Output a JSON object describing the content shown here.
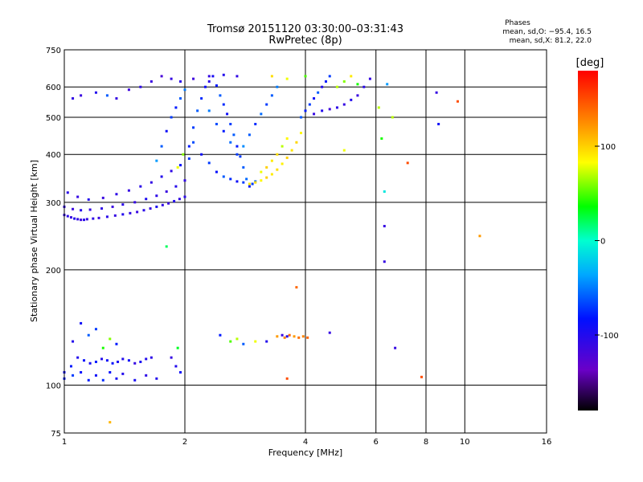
{
  "chart_data": {
    "type": "scatter",
    "title": "Tromsø 20151120 03:30:00–03:31:43",
    "subtitle": "RwPretec (8p)",
    "xlabel": "Frequency [MHz]",
    "ylabel": "Stationary phase Virtual Height [km]",
    "x_scale": "log",
    "y_scale": "log",
    "xlim": [
      1,
      16
    ],
    "ylim": [
      75,
      750
    ],
    "x_ticks": [
      1,
      2,
      4,
      6,
      8,
      10,
      16
    ],
    "x_tick_labels": [
      "1",
      "2",
      "4",
      "6",
      "8",
      "10",
      "16"
    ],
    "y_ticks": [
      75,
      100,
      200,
      300,
      400,
      500,
      600,
      750
    ],
    "y_tick_labels": [
      "75",
      "100",
      "200",
      "300",
      "400",
      "500",
      "600",
      "750"
    ],
    "grid": true,
    "stats": {
      "heading": "Phases",
      "line_o": "mean, sd,O: −95.4, 16.5",
      "line_x": "mean, sd,X:  81.2, 22.0"
    },
    "colorbar": {
      "label": "[deg]",
      "range": [
        -180,
        180
      ],
      "ticks": [
        100,
        0,
        -100
      ],
      "tick_labels": [
        "100",
        "0",
        "-100"
      ]
    },
    "series": [
      {
        "points": [
          [
            1.0,
            278,
            -110
          ],
          [
            1.02,
            276,
            -105
          ],
          [
            1.04,
            274,
            -112
          ],
          [
            1.06,
            272,
            -100
          ],
          [
            1.08,
            271,
            -108
          ],
          [
            1.1,
            270,
            -115
          ],
          [
            1.12,
            270,
            -102
          ],
          [
            1.14,
            271,
            -110
          ],
          [
            1.18,
            272,
            -106
          ],
          [
            1.22,
            273,
            -112
          ],
          [
            1.28,
            275,
            -104
          ],
          [
            1.34,
            277,
            -110
          ],
          [
            1.4,
            279,
            -100
          ],
          [
            1.46,
            281,
            -108
          ],
          [
            1.52,
            283,
            -112
          ],
          [
            1.58,
            286,
            -104
          ],
          [
            1.64,
            289,
            -110
          ],
          [
            1.7,
            292,
            -96
          ],
          [
            1.76,
            295,
            -106
          ],
          [
            1.82,
            298,
            -112
          ],
          [
            1.88,
            302,
            -100
          ],
          [
            1.94,
            306,
            -108
          ],
          [
            2.0,
            310,
            -104
          ],
          [
            1.0,
            292,
            -108
          ],
          [
            1.05,
            288,
            -112
          ],
          [
            1.1,
            286,
            -102
          ],
          [
            1.16,
            287,
            -110
          ],
          [
            1.24,
            289,
            -106
          ],
          [
            1.32,
            292,
            -112
          ],
          [
            1.4,
            296,
            -104
          ],
          [
            1.5,
            300,
            -110
          ],
          [
            1.6,
            306,
            -98
          ],
          [
            1.7,
            312,
            -106
          ],
          [
            1.8,
            320,
            -112
          ],
          [
            1.9,
            330,
            -102
          ],
          [
            2.0,
            342,
            -108
          ],
          [
            1.02,
            318,
            -104
          ],
          [
            1.08,
            310,
            -110
          ],
          [
            1.15,
            305,
            -100
          ],
          [
            1.25,
            308,
            -112
          ],
          [
            1.35,
            315,
            -106
          ],
          [
            1.45,
            322,
            -110
          ],
          [
            1.55,
            330,
            -104
          ],
          [
            1.65,
            338,
            -108
          ],
          [
            1.75,
            350,
            -100
          ],
          [
            1.85,
            362,
            -106
          ],
          [
            1.95,
            375,
            -84
          ],
          [
            2.05,
            390,
            -70
          ],
          [
            1.7,
            385,
            -40
          ],
          [
            1.75,
            420,
            -60
          ],
          [
            1.8,
            460,
            -90
          ],
          [
            1.85,
            500,
            -70
          ],
          [
            1.9,
            530,
            -80
          ],
          [
            1.95,
            560,
            -60
          ],
          [
            2.0,
            590,
            -50
          ],
          [
            2.05,
            420,
            -80
          ],
          [
            2.1,
            470,
            -70
          ],
          [
            2.15,
            520,
            -60
          ],
          [
            2.2,
            560,
            -75
          ],
          [
            2.25,
            600,
            -90
          ],
          [
            2.3,
            620,
            -105
          ],
          [
            2.35,
            640,
            -95
          ],
          [
            2.4,
            605,
            -80
          ],
          [
            2.45,
            570,
            -60
          ],
          [
            2.5,
            540,
            -75
          ],
          [
            2.55,
            510,
            -90
          ],
          [
            2.6,
            480,
            -70
          ],
          [
            2.65,
            450,
            -60
          ],
          [
            2.7,
            420,
            -80
          ],
          [
            2.75,
            395,
            -70
          ],
          [
            2.8,
            370,
            -60
          ],
          [
            2.85,
            345,
            -55
          ],
          [
            2.9,
            330,
            -80
          ],
          [
            2.95,
            335,
            -70
          ],
          [
            3.0,
            340,
            -60
          ],
          [
            2.1,
            430,
            -65
          ],
          [
            2.2,
            400,
            -90
          ],
          [
            2.3,
            380,
            -70
          ],
          [
            2.4,
            360,
            -85
          ],
          [
            2.5,
            350,
            -60
          ],
          [
            2.6,
            345,
            -75
          ],
          [
            2.7,
            340,
            -90
          ],
          [
            2.8,
            338,
            -70
          ],
          [
            2.3,
            520,
            -50
          ],
          [
            2.4,
            480,
            -65
          ],
          [
            2.5,
            460,
            -80
          ],
          [
            2.6,
            430,
            -55
          ],
          [
            2.7,
            400,
            -70
          ],
          [
            2.8,
            420,
            -45
          ],
          [
            2.9,
            450,
            -60
          ],
          [
            3.0,
            480,
            -75
          ],
          [
            3.1,
            510,
            -55
          ],
          [
            3.2,
            540,
            -70
          ],
          [
            3.3,
            570,
            -60
          ],
          [
            3.4,
            600,
            -50
          ],
          [
            2.9,
            335,
            90
          ],
          [
            3.0,
            338,
            95
          ],
          [
            3.1,
            342,
            85
          ],
          [
            3.2,
            348,
            100
          ],
          [
            3.3,
            355,
            90
          ],
          [
            3.4,
            365,
            95
          ],
          [
            3.5,
            378,
            88
          ],
          [
            3.6,
            392,
            100
          ],
          [
            3.7,
            410,
            92
          ],
          [
            3.8,
            430,
            98
          ],
          [
            3.9,
            455,
            85
          ],
          [
            3.1,
            360,
            80
          ],
          [
            3.2,
            370,
            100
          ],
          [
            3.3,
            385,
            90
          ],
          [
            3.4,
            400,
            95
          ],
          [
            3.5,
            420,
            70
          ],
          [
            3.6,
            440,
            85
          ],
          [
            3.9,
            500,
            -60
          ],
          [
            4.0,
            520,
            -80
          ],
          [
            4.1,
            540,
            -70
          ],
          [
            4.2,
            560,
            -90
          ],
          [
            4.3,
            580,
            -60
          ],
          [
            4.4,
            600,
            -100
          ],
          [
            4.5,
            620,
            -80
          ],
          [
            4.6,
            640,
            -70
          ],
          [
            4.2,
            510,
            -110
          ],
          [
            4.4,
            520,
            -100
          ],
          [
            4.6,
            525,
            -115
          ],
          [
            4.8,
            530,
            -105
          ],
          [
            5.0,
            540,
            -110
          ],
          [
            5.2,
            555,
            -100
          ],
          [
            5.4,
            570,
            -112
          ],
          [
            5.6,
            600,
            -104
          ],
          [
            5.8,
            630,
            -110
          ],
          [
            4.8,
            600,
            70
          ],
          [
            5.0,
            620,
            60
          ],
          [
            5.2,
            640,
            90
          ],
          [
            5.4,
            610,
            40
          ],
          [
            3.3,
            640,
            95
          ],
          [
            3.6,
            630,
            80
          ],
          [
            4.0,
            640,
            50
          ],
          [
            1.05,
            560,
            -108
          ],
          [
            1.1,
            570,
            -112
          ],
          [
            1.2,
            580,
            -100
          ],
          [
            1.28,
            570,
            -60
          ],
          [
            1.35,
            560,
            -110
          ],
          [
            1.45,
            590,
            -115
          ],
          [
            1.55,
            600,
            -106
          ],
          [
            1.65,
            620,
            -112
          ],
          [
            1.75,
            640,
            -120
          ],
          [
            1.85,
            630,
            -110
          ],
          [
            1.95,
            620,
            -104
          ],
          [
            2.1,
            630,
            -115
          ],
          [
            2.3,
            640,
            -110
          ],
          [
            2.5,
            645,
            -100
          ],
          [
            2.7,
            640,
            -108
          ],
          [
            1.92,
            370,
            80
          ],
          [
            1.98,
            400,
            60
          ],
          [
            1.8,
            230,
            20
          ],
          [
            1.0,
            108,
            -90
          ],
          [
            1.04,
            112,
            -80
          ],
          [
            1.08,
            118,
            -100
          ],
          [
            1.12,
            116,
            -85
          ],
          [
            1.16,
            114,
            -95
          ],
          [
            1.2,
            115,
            -80
          ],
          [
            1.24,
            117,
            -100
          ],
          [
            1.28,
            116,
            -90
          ],
          [
            1.32,
            114,
            -85
          ],
          [
            1.36,
            115,
            -95
          ],
          [
            1.4,
            117,
            -100
          ],
          [
            1.45,
            116,
            -90
          ],
          [
            1.5,
            114,
            -110
          ],
          [
            1.55,
            115,
            -95
          ],
          [
            1.6,
            117,
            -100
          ],
          [
            1.65,
            118,
            -105
          ],
          [
            1.0,
            104,
            -80
          ],
          [
            1.05,
            106,
            -70
          ],
          [
            1.1,
            108,
            -85
          ],
          [
            1.15,
            103,
            -80
          ],
          [
            1.2,
            106,
            -90
          ],
          [
            1.25,
            103,
            -75
          ],
          [
            1.3,
            108,
            -85
          ],
          [
            1.35,
            104,
            -95
          ],
          [
            1.4,
            107,
            -100
          ],
          [
            1.5,
            103,
            -95
          ],
          [
            1.6,
            106,
            -105
          ],
          [
            1.7,
            104,
            -100
          ],
          [
            1.05,
            130,
            -100
          ],
          [
            1.1,
            145,
            -90
          ],
          [
            1.15,
            135,
            -60
          ],
          [
            1.2,
            140,
            -70
          ],
          [
            1.25,
            125,
            40
          ],
          [
            1.3,
            132,
            60
          ],
          [
            1.35,
            128,
            -80
          ],
          [
            1.85,
            118,
            -110
          ],
          [
            1.9,
            112,
            -100
          ],
          [
            1.95,
            108,
            -90
          ],
          [
            1.92,
            125,
            30
          ],
          [
            2.45,
            135,
            -80
          ],
          [
            2.6,
            130,
            50
          ],
          [
            2.7,
            132,
            70
          ],
          [
            2.8,
            128,
            -60
          ],
          [
            3.0,
            130,
            80
          ],
          [
            3.2,
            130,
            -100
          ],
          [
            3.4,
            134,
            120
          ],
          [
            3.55,
            133,
            130
          ],
          [
            3.65,
            135,
            140
          ],
          [
            3.75,
            134,
            120
          ],
          [
            3.85,
            133,
            135
          ],
          [
            3.95,
            134,
            128
          ],
          [
            4.05,
            133,
            140
          ],
          [
            3.5,
            135,
            -110
          ],
          [
            3.6,
            134,
            -100
          ],
          [
            3.6,
            104,
            150
          ],
          [
            3.8,
            180,
            140
          ],
          [
            4.6,
            137,
            -110
          ],
          [
            1.3,
            80,
            110
          ],
          [
            6.1,
            530,
            70
          ],
          [
            6.2,
            440,
            40
          ],
          [
            6.4,
            610,
            -40
          ],
          [
            6.6,
            500,
            70
          ],
          [
            6.3,
            320,
            -10
          ],
          [
            6.3,
            260,
            -110
          ],
          [
            6.3,
            210,
            -110
          ],
          [
            6.7,
            125,
            -110
          ],
          [
            7.2,
            380,
            150
          ],
          [
            7.8,
            105,
            150
          ],
          [
            8.5,
            580,
            -110
          ],
          [
            8.6,
            480,
            -90
          ],
          [
            9.6,
            550,
            150
          ],
          [
            10.9,
            245,
            120
          ],
          [
            5.0,
            410,
            80
          ]
        ]
      }
    ]
  }
}
